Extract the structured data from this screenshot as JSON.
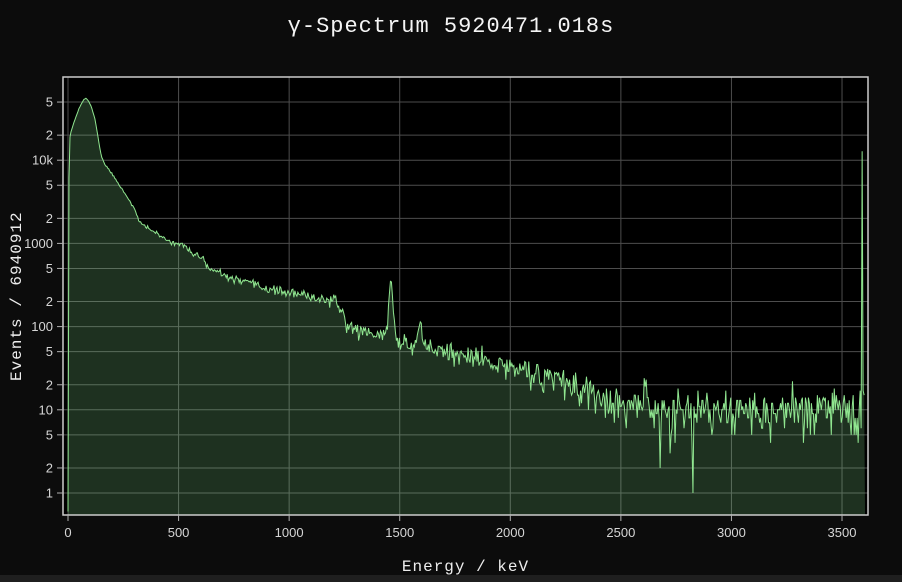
{
  "page": {
    "background_color": "#0c0c0c",
    "bottom_strip_color": "#1f1f1f"
  },
  "chart_data": {
    "type": "area",
    "title": "γ-Spectrum 5920471.018s",
    "xlabel": "Energy / keV",
    "ylabel": "Events / 6940912",
    "x_axis": {
      "range_kev": [
        -22.6,
        3617.5
      ],
      "tick_values": [
        0,
        500,
        1000,
        1500,
        2000,
        2500,
        3000,
        3500
      ],
      "tick_labels": [
        "0",
        "500",
        "1000",
        "1500",
        "2000",
        "2500",
        "3000",
        "3500"
      ]
    },
    "y_axis": {
      "scale": "log",
      "log10_range": [
        -0.2644,
        5.0
      ],
      "tick_values": [
        1,
        2,
        5,
        10,
        20,
        50,
        100,
        200,
        500,
        1000,
        2000,
        5000,
        10000,
        20000,
        50000
      ],
      "tick_labels": [
        "1",
        "2",
        "5",
        "10",
        "2",
        "5",
        "100",
        "2",
        "5",
        "1000",
        "2",
        "5",
        "10k",
        "2",
        "5"
      ]
    },
    "grid": {
      "show": true,
      "horizontal_at_every_tick": true,
      "vertical_every_kev": 500
    },
    "legend": {
      "show": false
    },
    "colors": {
      "line": "#90e690",
      "fill": "rgba(140,230,150,0.21)",
      "plot_background": "#000000",
      "grid": "#4d4d4d",
      "axis_border": "#cccccc",
      "tick_mark": "#b0b0b0",
      "tick_text": "#d6d6d6",
      "title_text": "#f5f5f5"
    },
    "series": [
      {
        "name": "gamma-spectrum",
        "bin_width_kev": 4.5,
        "noise_model": "poisson",
        "noise_seed": 11,
        "baseline_points_kev_counts": [
          [
            0,
            0.6
          ],
          [
            5,
            17000
          ],
          [
            15,
            23000
          ],
          [
            30,
            30000
          ],
          [
            50,
            42000
          ],
          [
            70,
            53000
          ],
          [
            82,
            55500
          ],
          [
            92,
            52000
          ],
          [
            105,
            44000
          ],
          [
            120,
            33000
          ],
          [
            132,
            22000
          ],
          [
            142,
            15000
          ],
          [
            150,
            11500
          ],
          [
            163,
            9200
          ],
          [
            190,
            7400
          ],
          [
            215,
            5900
          ],
          [
            235,
            4900
          ],
          [
            260,
            3900
          ],
          [
            280,
            3230
          ],
          [
            300,
            2600
          ],
          [
            325,
            1760
          ],
          [
            350,
            1600
          ],
          [
            370,
            1490
          ],
          [
            395,
            1350
          ],
          [
            416,
            1230
          ],
          [
            440,
            1120
          ],
          [
            461,
            1070
          ],
          [
            480,
            1020
          ],
          [
            502,
            990
          ],
          [
            525,
            920
          ],
          [
            550,
            830
          ],
          [
            575,
            700
          ],
          [
            600,
            600
          ],
          [
            625,
            520
          ],
          [
            650,
            480
          ],
          [
            700,
            420
          ],
          [
            750,
            370
          ],
          [
            800,
            340
          ],
          [
            850,
            315
          ],
          [
            900,
            285
          ],
          [
            950,
            270
          ],
          [
            1000,
            255
          ],
          [
            1050,
            240
          ],
          [
            1100,
            228
          ],
          [
            1150,
            215
          ],
          [
            1195,
            205
          ],
          [
            1210,
            195
          ],
          [
            1230,
            170
          ],
          [
            1245,
            140
          ],
          [
            1258,
            108
          ],
          [
            1275,
            98
          ],
          [
            1310,
            93
          ],
          [
            1350,
            87
          ],
          [
            1400,
            81
          ],
          [
            1440,
            77
          ],
          [
            1480,
            70
          ],
          [
            1520,
            63
          ],
          [
            1560,
            58
          ],
          [
            1600,
            55
          ],
          [
            1650,
            54
          ],
          [
            1700,
            51
          ],
          [
            1750,
            48
          ],
          [
            1800,
            44
          ],
          [
            1850,
            41
          ],
          [
            1900,
            38
          ],
          [
            1950,
            35
          ],
          [
            2000,
            33
          ],
          [
            2050,
            30
          ],
          [
            2100,
            28
          ],
          [
            2150,
            26
          ],
          [
            2200,
            23
          ],
          [
            2250,
            21
          ],
          [
            2300,
            18.5
          ],
          [
            2350,
            16.5
          ],
          [
            2400,
            14.5
          ],
          [
            2450,
            13
          ],
          [
            2500,
            12
          ],
          [
            2550,
            11.2
          ],
          [
            2600,
            10.8
          ],
          [
            2700,
            10.2
          ],
          [
            2800,
            10
          ],
          [
            2900,
            9.8
          ],
          [
            3000,
            9.6
          ],
          [
            3100,
            9.5
          ],
          [
            3200,
            9.5
          ],
          [
            3300,
            9.7
          ],
          [
            3400,
            10
          ],
          [
            3500,
            10.2
          ],
          [
            3604,
            10.5
          ]
        ],
        "gaussian_peaks": [
          {
            "center_kev": 583,
            "sigma_kev": 7,
            "height_counts": 90
          },
          {
            "center_kev": 609,
            "sigma_kev": 7,
            "height_counts": 130
          },
          {
            "center_kev": 1460,
            "sigma_kev": 8,
            "height_counts": 265
          },
          {
            "center_kev": 1592,
            "sigma_kev": 8,
            "height_counts": 68
          },
          {
            "center_kev": 2614,
            "sigma_kev": 9,
            "height_counts": 11
          }
        ],
        "deep_dips": [
          {
            "energy_kev": 2676,
            "counts": 2
          },
          {
            "energy_kev": 2824,
            "counts": 1
          }
        ],
        "overflow_spike": {
          "energy_kev": 3593,
          "counts": 12800
        },
        "data_end_kev": 3604
      }
    ]
  }
}
